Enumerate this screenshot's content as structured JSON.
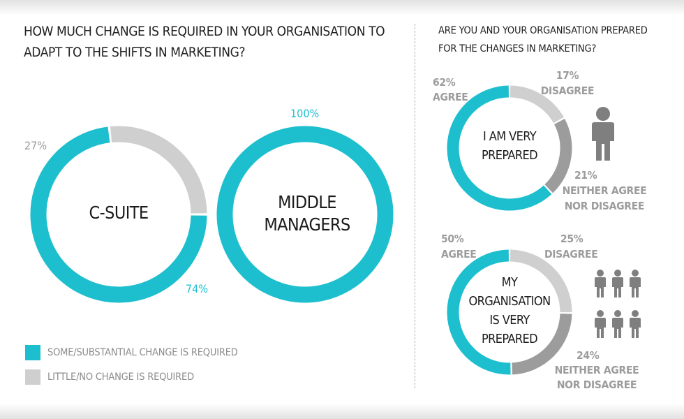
{
  "colors": {
    "teal": "#1dbfcf",
    "light_gray": "#cfcfcf",
    "dark_gray": "#9c9c9c",
    "icon_gray": "#7f7f7f",
    "text_gray": "#8c8c8c"
  },
  "left": {
    "title_line1": "HOW MUCH CHANGE IS REQUIRED IN YOUR ORGANISATION TO",
    "title_line2": "ADAPT TO THE SHIFTS IN MARKETING?",
    "legend": [
      {
        "label": "SOME/SUBSTANTIAL CHANGE IS REQUIRED",
        "color": "#1dbfcf"
      },
      {
        "label": "LITTLE/NO CHANGE IS REQUIRED",
        "color": "#cfcfcf"
      }
    ]
  },
  "right": {
    "title_line1": "ARE YOU AND YOUR ORGANISATION PREPARED",
    "title_line2": "FOR THE CHANGES IN MARKETING?"
  },
  "chart_data": [
    {
      "type": "pie",
      "title": "C-SUITE",
      "categories": [
        "SOME/SUBSTANTIAL CHANGE IS REQUIRED",
        "LITTLE/NO CHANGE IS REQUIRED"
      ],
      "values": [
        74,
        27
      ],
      "labels": [
        "74%",
        "27%"
      ]
    },
    {
      "type": "pie",
      "title_line1": "MIDDLE",
      "title_line2": "MANAGERS",
      "categories": [
        "SOME/SUBSTANTIAL CHANGE IS REQUIRED"
      ],
      "values": [
        100
      ],
      "labels": [
        "100%"
      ]
    },
    {
      "type": "pie",
      "title_line1": "I AM VERY",
      "title_line2": "PREPARED",
      "categories": [
        "AGREE",
        "DISAGREE",
        "NEITHER AGREE NOR DISAGREE"
      ],
      "values": [
        62,
        17,
        21
      ],
      "labels": [
        "62%",
        "17%",
        "21%"
      ],
      "category_labels": [
        "AGREE",
        "DISAGREE",
        "NEITHER AGREE",
        "NOR DISAGREE"
      ]
    },
    {
      "type": "pie",
      "title_line1": "MY",
      "title_line2": "ORGANISATION",
      "title_line3": "IS VERY",
      "title_line4": "PREPARED",
      "categories": [
        "AGREE",
        "DISAGREE",
        "NEITHER AGREE NOR DISAGREE"
      ],
      "values": [
        50,
        25,
        24
      ],
      "labels": [
        "50%",
        "25%",
        "24%"
      ],
      "category_labels": [
        "AGREE",
        "DISAGREE",
        "NEITHER AGREE",
        "NOR DISAGREE"
      ]
    }
  ]
}
